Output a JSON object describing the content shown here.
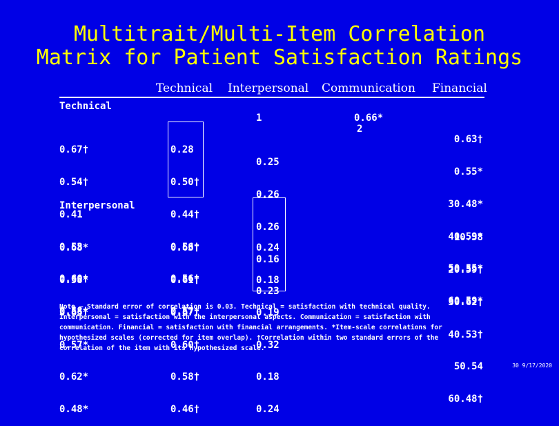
{
  "title": {
    "line1": "Multitrait/Multi-Item Correlation",
    "line2": "Matrix for Patient Satisfaction Ratings"
  },
  "headers": {
    "technical": "Technical",
    "interpersonal": "Interpersonal",
    "communication": "Communication",
    "financial": "Financial"
  },
  "sections": {
    "technical": "Technical",
    "interpersonal": "Interpersonal"
  },
  "technical_block": {
    "col1": [
      "0.67†",
      "0.54†",
      "0.41",
      "0.53",
      "0.60†",
      "0.58†"
    ],
    "col2": [
      "0.28",
      "0.50†",
      "0.44†",
      "0.56†",
      "0.56†",
      "0.57†"
    ],
    "col3_top": "1",
    "col3": [
      "0.25",
      "0.26",
      "0.26",
      "0.16",
      "0.23"
    ],
    "col4_top": "0.66*",
    "col4_second": "2",
    "col5": [
      "0.63†",
      "0.55*",
      "30.48*",
      "40.59*",
      "50.55*",
      "60.59*"
    ]
  },
  "interpersonal_block": {
    "col1": [
      "0.68*",
      "0.58*",
      "0.65*",
      "0.57*",
      "0.62*",
      "0.48*"
    ],
    "col2": [
      "0.63†",
      "0.61†",
      "0.67†",
      "0.60†",
      "0.58†",
      "0.46†"
    ],
    "col3": [
      "0.24",
      "0.18",
      "0.19",
      "0.32",
      "0.18",
      "0.24"
    ],
    "col5": [
      "10.58",
      "20.59†",
      "30.62†",
      "40.53†",
      "50.54",
      "60.48†"
    ]
  },
  "note": "Note – Standard error of correlation is 0.03. Technical = satisfaction with technical quality. Interpersonal = satisfaction with the interpersonal aspects. Communication = satisfaction with communication. Financial = satisfaction with financial arrangements. *Item-scale correlations for hypothesized scales (corrected for item overlap). †Correlation within two standard errors of the correlation of the item with its hypothesized scale.",
  "footer": "30 9/17/2020",
  "colors": {
    "background": "#0000e6",
    "title": "#ffff00",
    "text": "#ffffff"
  }
}
